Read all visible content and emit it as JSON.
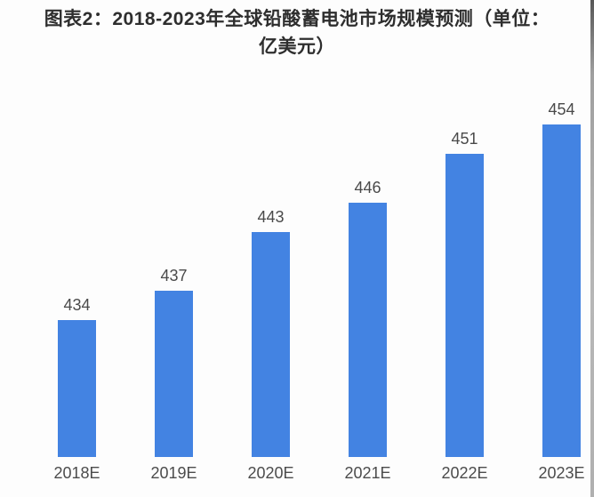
{
  "page": {
    "background": "#fdfdfd"
  },
  "chart_data": {
    "type": "bar",
    "title": "图表2：2018-2023年全球铅酸蓄电池市场规模预测（单位：亿美元）",
    "title_lines": [
      "图表2：2018-2023年全球铅酸蓄电池市场规模预测（单位：",
      "亿美元）"
    ],
    "unit": "亿美元",
    "categories": [
      "2018E",
      "2019E",
      "2020E",
      "2021E",
      "2022E",
      "2023E"
    ],
    "values": [
      434,
      437,
      443,
      446,
      451,
      454
    ],
    "ylim": [
      420,
      460
    ],
    "grid": false,
    "legend": false,
    "bar_color": "#4383E2",
    "value_label_color": "#4a4a4a",
    "axis_label_color": "#4c4c4c",
    "title_color": "#2e2e2e"
  }
}
